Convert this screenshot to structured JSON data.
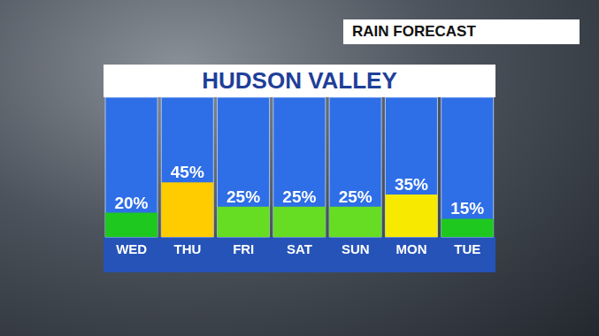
{
  "chart_data": {
    "type": "bar",
    "title": "HUDSON VALLEY",
    "subtitle": "RAIN FORECAST",
    "categories": [
      "WED",
      "THU",
      "FRI",
      "SAT",
      "SUN",
      "MON",
      "TUE"
    ],
    "values": [
      20,
      45,
      25,
      25,
      25,
      35,
      15
    ],
    "value_labels": [
      "20%",
      "45%",
      "25%",
      "25%",
      "25%",
      "35%",
      "15%"
    ],
    "colors": [
      "#1fc81f",
      "#ffcc00",
      "#66dd22",
      "#66dd22",
      "#66dd22",
      "#f7ea00",
      "#1fc81f"
    ],
    "ylim": [
      0,
      115
    ],
    "data_labels": true,
    "tick_labels": "x",
    "grid": false
  }
}
